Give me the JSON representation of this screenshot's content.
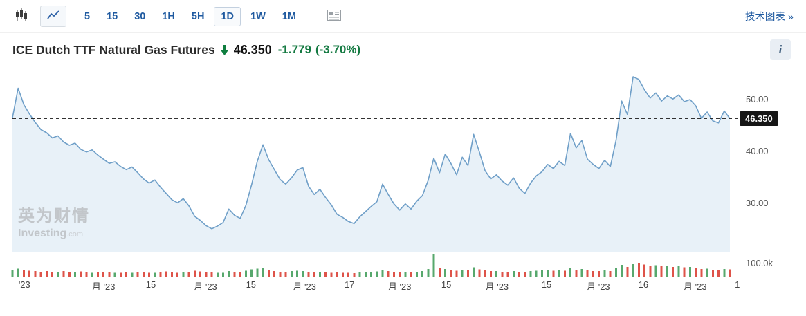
{
  "toolbar": {
    "chart_type_icons": {
      "candles": "candlestick-chart",
      "line": "line-chart"
    },
    "selected_chart_type": "line",
    "intervals": [
      "5",
      "15",
      "30",
      "1H",
      "5H",
      "1D",
      "1W",
      "1M"
    ],
    "selected_interval": "1D",
    "news_icon": "news-panel",
    "technical_link": "技术图表 »"
  },
  "header": {
    "title": "ICE Dutch TTF Natural Gas Futures",
    "direction": "down",
    "price": "46.350",
    "change": "-1.779",
    "change_pct": "(-3.70%)",
    "info_label": "i",
    "change_color": "#157a42"
  },
  "watermark": {
    "cn": "英为财情",
    "brand": "Investing",
    "tld": ".com"
  },
  "chart_data": {
    "type": "area",
    "instrument": "ICE Dutch TTF Natural Gas Futures",
    "interval": "1D",
    "last_price": 46.35,
    "last_price_label": "46.350",
    "ylim": [
      20.5,
      56.5
    ],
    "grid": false,
    "legend": false,
    "y_ticks": [
      {
        "label": "50.00",
        "value": 50
      },
      {
        "label": "40.00",
        "value": 40
      },
      {
        "label": "30.00",
        "value": 30
      }
    ],
    "volume_tick": {
      "label": "100.0k",
      "value": 100
    },
    "x_labels": [
      {
        "label": "'23",
        "i": 2.1
      },
      {
        "label": "月 '23",
        "i": 16.0
      },
      {
        "label": "15",
        "i": 24.3
      },
      {
        "label": "月 '23",
        "i": 33.9
      },
      {
        "label": "15",
        "i": 41.9
      },
      {
        "label": "月 '23",
        "i": 51.3
      },
      {
        "label": "17",
        "i": 59.2
      },
      {
        "label": "月 '23",
        "i": 68.0
      },
      {
        "label": "15",
        "i": 76.2
      },
      {
        "label": "月 '23",
        "i": 85.1
      },
      {
        "label": "15",
        "i": 93.8
      },
      {
        "label": "月 '23",
        "i": 102.9
      },
      {
        "label": "16",
        "i": 110.8
      },
      {
        "label": "月 '23",
        "i": 119.9
      },
      {
        "label": "1",
        "i": 127.3
      }
    ],
    "prices": [
      46.5,
      52.2,
      49.0,
      47.2,
      45.6,
      44.2,
      43.6,
      42.6,
      43.0,
      41.8,
      41.2,
      41.6,
      40.4,
      39.9,
      40.3,
      39.3,
      38.5,
      37.7,
      38.0,
      37.1,
      36.5,
      37.0,
      35.9,
      34.7,
      33.9,
      34.5,
      33.1,
      31.9,
      30.7,
      30.1,
      30.9,
      29.5,
      27.5,
      26.7,
      25.7,
      25.1,
      25.6,
      26.3,
      28.9,
      27.7,
      27.1,
      29.6,
      33.6,
      38.1,
      41.3,
      38.4,
      36.5,
      34.6,
      33.7,
      34.9,
      36.4,
      36.9,
      33.3,
      31.7,
      32.7,
      31.1,
      29.7,
      27.9,
      27.3,
      26.5,
      26.1,
      27.4,
      28.4,
      29.4,
      30.3,
      33.7,
      31.7,
      29.9,
      28.7,
      29.9,
      28.9,
      30.4,
      31.5,
      34.4,
      38.7,
      35.9,
      39.5,
      37.7,
      35.5,
      38.9,
      37.3,
      43.3,
      39.9,
      36.3,
      34.7,
      35.5,
      34.3,
      33.5,
      34.9,
      32.9,
      31.9,
      33.9,
      35.3,
      36.1,
      37.5,
      36.7,
      38.1,
      37.3,
      43.5,
      40.7,
      42.1,
      38.5,
      37.5,
      36.7,
      38.3,
      37.1,
      42.1,
      49.7,
      47.1,
      54.4,
      53.9,
      51.9,
      50.3,
      51.3,
      49.7,
      50.7,
      50.1,
      50.9,
      49.6,
      50.0,
      48.8,
      46.4,
      47.6,
      45.9,
      45.5,
      47.8,
      46.35
    ],
    "volumes": [
      52,
      61,
      48,
      45,
      41,
      38,
      43,
      36,
      34,
      41,
      36,
      32,
      39,
      35,
      30,
      34,
      36,
      33,
      30,
      28,
      35,
      30,
      37,
      32,
      30,
      28,
      36,
      39,
      33,
      30,
      37,
      31,
      44,
      39,
      35,
      32,
      30,
      29,
      41,
      34,
      31,
      46,
      54,
      60,
      66,
      50,
      43,
      38,
      36,
      41,
      45,
      41,
      38,
      34,
      37,
      32,
      30,
      35,
      30,
      28,
      26,
      33,
      35,
      37,
      39,
      50,
      41,
      34,
      31,
      35,
      31,
      37,
      42,
      58,
      172,
      64,
      59,
      51,
      45,
      53,
      47,
      70,
      55,
      47,
      41,
      43,
      38,
      36,
      43,
      37,
      34,
      43,
      45,
      47,
      51,
      45,
      49,
      45,
      68,
      53,
      57,
      47,
      43,
      41,
      47,
      43,
      62,
      90,
      74,
      96,
      102,
      92,
      85,
      88,
      79,
      83,
      75,
      78,
      71,
      73,
      65,
      59,
      61,
      53,
      51,
      59,
      55
    ],
    "volume_unit": "k",
    "line_color": "#6f9fc8",
    "fill_color": "#e8f1f8",
    "vol_up_color": "#57a86d",
    "vol_down_color": "#de5349",
    "dashed_line_color": "#161616"
  }
}
